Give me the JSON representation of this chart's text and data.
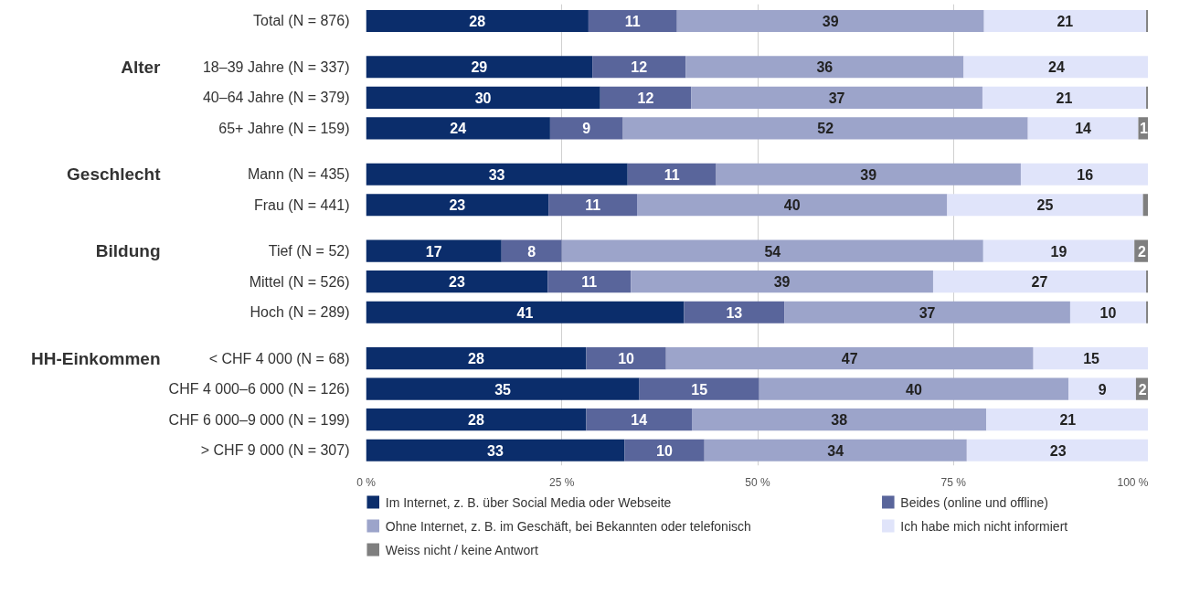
{
  "chart_data": {
    "type": "bar",
    "orientation": "horizontal",
    "stacked": true,
    "categories": [
      "Total (N = 876)",
      "18–39 Jahre (N = 337)",
      "40–64 Jahre (N = 379)",
      "65+ Jahre (N = 159)",
      "Mann (N = 435)",
      "Frau (N = 441)",
      "Tief (N = 52)",
      "Mittel (N = 526)",
      "Hoch (N = 289)",
      "< CHF 4 000 (N = 68)",
      "CHF 4 000–6 000 (N = 126)",
      "CHF 6 000–9 000 (N = 199)",
      "> CHF 9 000 (N = 307)"
    ],
    "series": [
      {
        "name": "Im Internet, z. B. über Social Media oder Webseite",
        "color": "#0b2d6b",
        "values": [
          28.4,
          28.9,
          29.9,
          23.5,
          33.4,
          23.3,
          17.3,
          23.2,
          40.6,
          28.1,
          34.9,
          28.1,
          33.0
        ],
        "value_labels": [
          "28",
          "29",
          "30",
          "24",
          "33",
          "23",
          "17",
          "23",
          "41",
          "28",
          "35",
          "28",
          "33"
        ]
      },
      {
        "name": "Beides (online und offline)",
        "color": "#59659b",
        "values": [
          11.3,
          11.9,
          11.6,
          9.3,
          11.3,
          11.3,
          7.7,
          10.6,
          12.8,
          10.2,
          15.3,
          13.5,
          10.2
        ],
        "value_labels": [
          "11",
          "12",
          "12",
          "9",
          "11",
          "11",
          "8",
          "11",
          "13",
          "10",
          "15",
          "14",
          "10"
        ]
      },
      {
        "name": "Ohne Internet, z. B. im Geschäft, bei Bekannten oder telefonisch",
        "color": "#9ca4ca",
        "values": [
          39.2,
          35.5,
          37.2,
          51.7,
          38.9,
          39.6,
          53.8,
          38.6,
          36.5,
          46.9,
          39.5,
          37.6,
          33.5
        ],
        "value_labels": [
          "39",
          "36",
          "37",
          "52",
          "39",
          "40",
          "54",
          "39",
          "37",
          "47",
          "40",
          "38",
          "34"
        ]
      },
      {
        "name": "Ich habe mich nicht informiert",
        "color": "#e0e4fa",
        "values": [
          20.7,
          23.7,
          20.9,
          14.1,
          16.4,
          25.0,
          19.3,
          27.2,
          9.7,
          14.8,
          8.6,
          20.8,
          23.3
        ],
        "value_labels": [
          "21",
          "24",
          "21",
          "14",
          "16",
          "25",
          "19",
          "27",
          "10",
          "15",
          "9",
          "21",
          "23"
        ]
      },
      {
        "name": "Weiss nicht / keine Antwort",
        "color": "#7f7f7f",
        "values": [
          0.4,
          null,
          0.4,
          1.4,
          null,
          0.8,
          1.9,
          0.4,
          0.4,
          null,
          1.7,
          null,
          null
        ],
        "value_labels": [
          null,
          null,
          null,
          "1",
          null,
          null,
          "2",
          null,
          null,
          null,
          "2",
          null,
          null
        ]
      }
    ],
    "y2_categories": [
      null,
      "Alter",
      null,
      null,
      "Geschlecht",
      null,
      "Bildung",
      null,
      null,
      "HH-Einkommen",
      null,
      null,
      null
    ],
    "xlim": [
      0,
      100
    ],
    "xticks": [
      {
        "value": 0,
        "label": "0 %"
      },
      {
        "value": 25,
        "label": "25 %"
      },
      {
        "value": 50,
        "label": "50 %"
      },
      {
        "value": 75,
        "label": "75 %"
      },
      {
        "value": 100,
        "label": "100 %"
      }
    ],
    "grid": "x",
    "legend": "bottom"
  }
}
